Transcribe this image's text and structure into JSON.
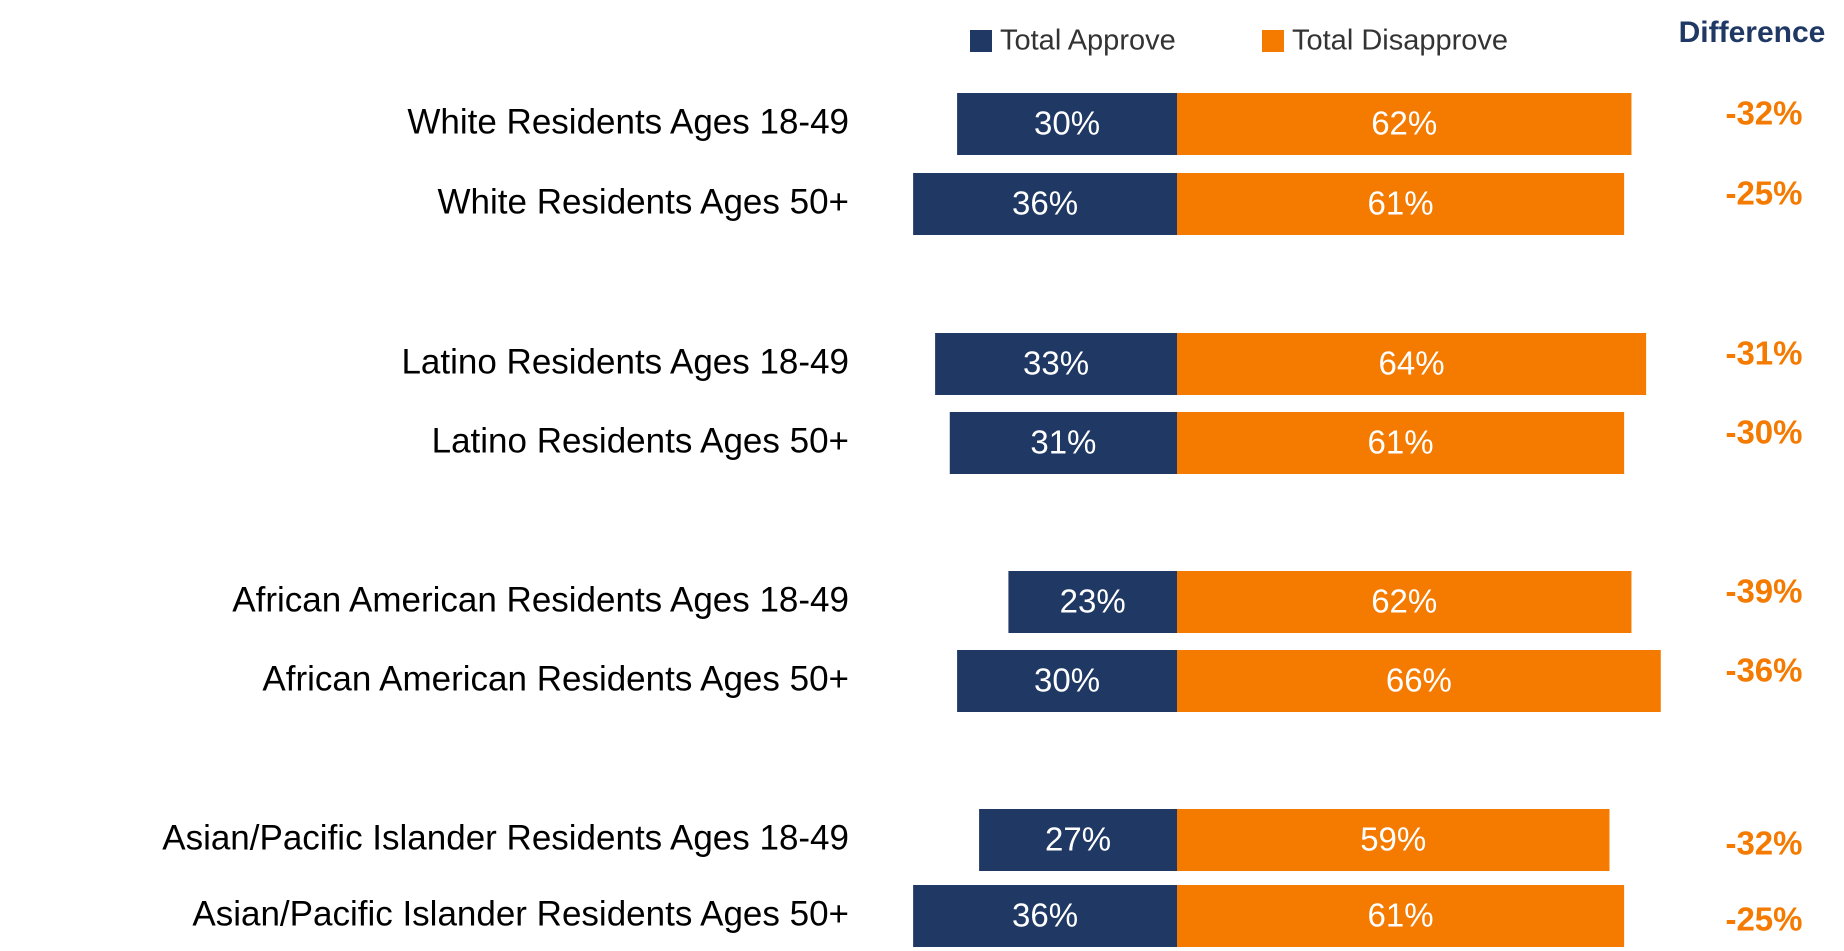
{
  "chart_data": {
    "type": "diverging-bar",
    "categories": [
      "White Residents Ages 18-49",
      "White Residents Ages 50+",
      "Latino Residents Ages 18-49",
      "Latino Residents Ages 50+",
      "African American Residents Ages 18-49",
      "African American Residents Ages 50+",
      "Asian/Pacific Islander Residents Ages 18-49",
      "Asian/Pacific Islander Residents Ages 50+"
    ],
    "series": [
      {
        "name": "Total Approve",
        "color": "#1f3864",
        "values": [
          30,
          36,
          33,
          31,
          23,
          30,
          27,
          36
        ],
        "value_labels": [
          "30%",
          "36%",
          "33%",
          "31%",
          "23%",
          "30%",
          "27%",
          "36%"
        ]
      },
      {
        "name": "Total Disapprove",
        "color": "#f47a00",
        "values": [
          62,
          61,
          64,
          61,
          62,
          66,
          59,
          61
        ],
        "value_labels": [
          "62%",
          "61%",
          "64%",
          "61%",
          "62%",
          "66%",
          "59%",
          "61%"
        ]
      }
    ],
    "difference_title": "Difference",
    "differences": [
      -32,
      -25,
      -31,
      -30,
      -39,
      -36,
      -32,
      -25
    ],
    "difference_labels": [
      "-32%",
      "-25%",
      "-31%",
      "-30%",
      "-39%",
      "-36%",
      "-32%",
      "-25%"
    ],
    "difference_color": "#f47a00"
  }
}
